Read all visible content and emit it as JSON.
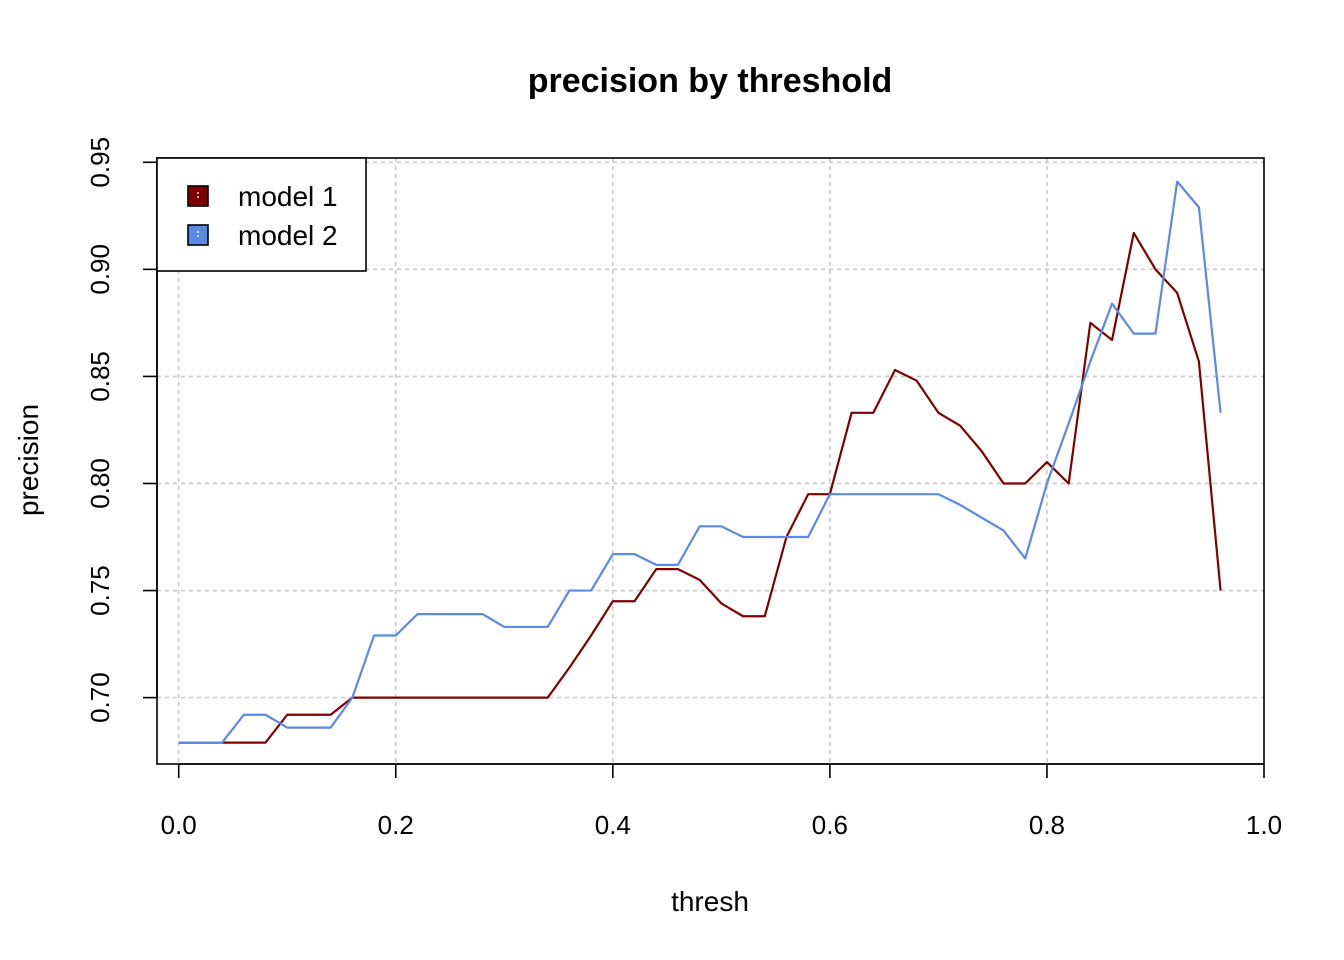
{
  "chart_data": {
    "type": "line",
    "title": "precision by threshold",
    "xlabel": "thresh",
    "ylabel": "precision",
    "xlim": [
      -0.02,
      1.0
    ],
    "ylim": [
      0.669,
      0.952
    ],
    "x_ticks": [
      0.0,
      0.2,
      0.4,
      0.6,
      0.8,
      1.0
    ],
    "x_tick_labels": [
      "0.0",
      "0.2",
      "0.4",
      "0.6",
      "0.8",
      "1.0"
    ],
    "y_ticks": [
      0.7,
      0.75,
      0.8,
      0.85,
      0.9,
      0.95
    ],
    "y_tick_labels": [
      "0.70",
      "0.75",
      "0.80",
      "0.85",
      "0.90",
      "0.95"
    ],
    "grid": true,
    "legend_position": "top-left",
    "series": [
      {
        "name": "model 1",
        "color": "#7f0000",
        "points": [
          [
            0.0,
            0.679
          ],
          [
            0.02,
            0.679
          ],
          [
            0.04,
            0.679
          ],
          [
            0.06,
            0.679
          ],
          [
            0.08,
            0.679
          ],
          [
            0.1,
            0.692
          ],
          [
            0.12,
            0.692
          ],
          [
            0.14,
            0.692
          ],
          [
            0.16,
            0.7
          ],
          [
            0.18,
            0.7
          ],
          [
            0.2,
            0.7
          ],
          [
            0.22,
            0.7
          ],
          [
            0.24,
            0.7
          ],
          [
            0.26,
            0.7
          ],
          [
            0.28,
            0.7
          ],
          [
            0.3,
            0.7
          ],
          [
            0.32,
            0.7
          ],
          [
            0.34,
            0.7
          ],
          [
            0.36,
            0.714
          ],
          [
            0.38,
            0.729
          ],
          [
            0.4,
            0.745
          ],
          [
            0.42,
            0.745
          ],
          [
            0.44,
            0.76
          ],
          [
            0.46,
            0.76
          ],
          [
            0.48,
            0.755
          ],
          [
            0.5,
            0.744
          ],
          [
            0.52,
            0.738
          ],
          [
            0.54,
            0.738
          ],
          [
            0.56,
            0.775
          ],
          [
            0.58,
            0.795
          ],
          [
            0.6,
            0.795
          ],
          [
            0.62,
            0.833
          ],
          [
            0.64,
            0.833
          ],
          [
            0.66,
            0.853
          ],
          [
            0.68,
            0.848
          ],
          [
            0.7,
            0.833
          ],
          [
            0.72,
            0.827
          ],
          [
            0.74,
            0.815
          ],
          [
            0.76,
            0.8
          ],
          [
            0.78,
            0.8
          ],
          [
            0.8,
            0.81
          ],
          [
            0.82,
            0.8
          ],
          [
            0.84,
            0.875
          ],
          [
            0.86,
            0.867
          ],
          [
            0.88,
            0.917
          ],
          [
            0.9,
            0.9
          ],
          [
            0.92,
            0.889
          ],
          [
            0.94,
            0.857
          ],
          [
            0.96,
            0.75
          ]
        ]
      },
      {
        "name": "model 2",
        "color": "#5a8ae6",
        "points": [
          [
            0.0,
            0.679
          ],
          [
            0.02,
            0.679
          ],
          [
            0.04,
            0.679
          ],
          [
            0.06,
            0.692
          ],
          [
            0.08,
            0.692
          ],
          [
            0.1,
            0.686
          ],
          [
            0.12,
            0.686
          ],
          [
            0.14,
            0.686
          ],
          [
            0.16,
            0.7
          ],
          [
            0.18,
            0.729
          ],
          [
            0.2,
            0.729
          ],
          [
            0.22,
            0.739
          ],
          [
            0.24,
            0.739
          ],
          [
            0.26,
            0.739
          ],
          [
            0.28,
            0.739
          ],
          [
            0.3,
            0.733
          ],
          [
            0.32,
            0.733
          ],
          [
            0.34,
            0.733
          ],
          [
            0.36,
            0.75
          ],
          [
            0.38,
            0.75
          ],
          [
            0.4,
            0.767
          ],
          [
            0.42,
            0.767
          ],
          [
            0.44,
            0.762
          ],
          [
            0.46,
            0.762
          ],
          [
            0.48,
            0.78
          ],
          [
            0.5,
            0.78
          ],
          [
            0.52,
            0.775
          ],
          [
            0.54,
            0.775
          ],
          [
            0.56,
            0.775
          ],
          [
            0.58,
            0.775
          ],
          [
            0.6,
            0.795
          ],
          [
            0.62,
            0.795
          ],
          [
            0.64,
            0.795
          ],
          [
            0.66,
            0.795
          ],
          [
            0.68,
            0.795
          ],
          [
            0.7,
            0.795
          ],
          [
            0.72,
            0.79
          ],
          [
            0.74,
            0.784
          ],
          [
            0.76,
            0.778
          ],
          [
            0.78,
            0.765
          ],
          [
            0.8,
            0.8
          ],
          [
            0.82,
            0.828
          ],
          [
            0.84,
            0.857
          ],
          [
            0.86,
            0.884
          ],
          [
            0.88,
            0.87
          ],
          [
            0.9,
            0.87
          ],
          [
            0.92,
            0.941
          ],
          [
            0.94,
            0.929
          ],
          [
            0.96,
            0.833
          ]
        ]
      }
    ]
  }
}
